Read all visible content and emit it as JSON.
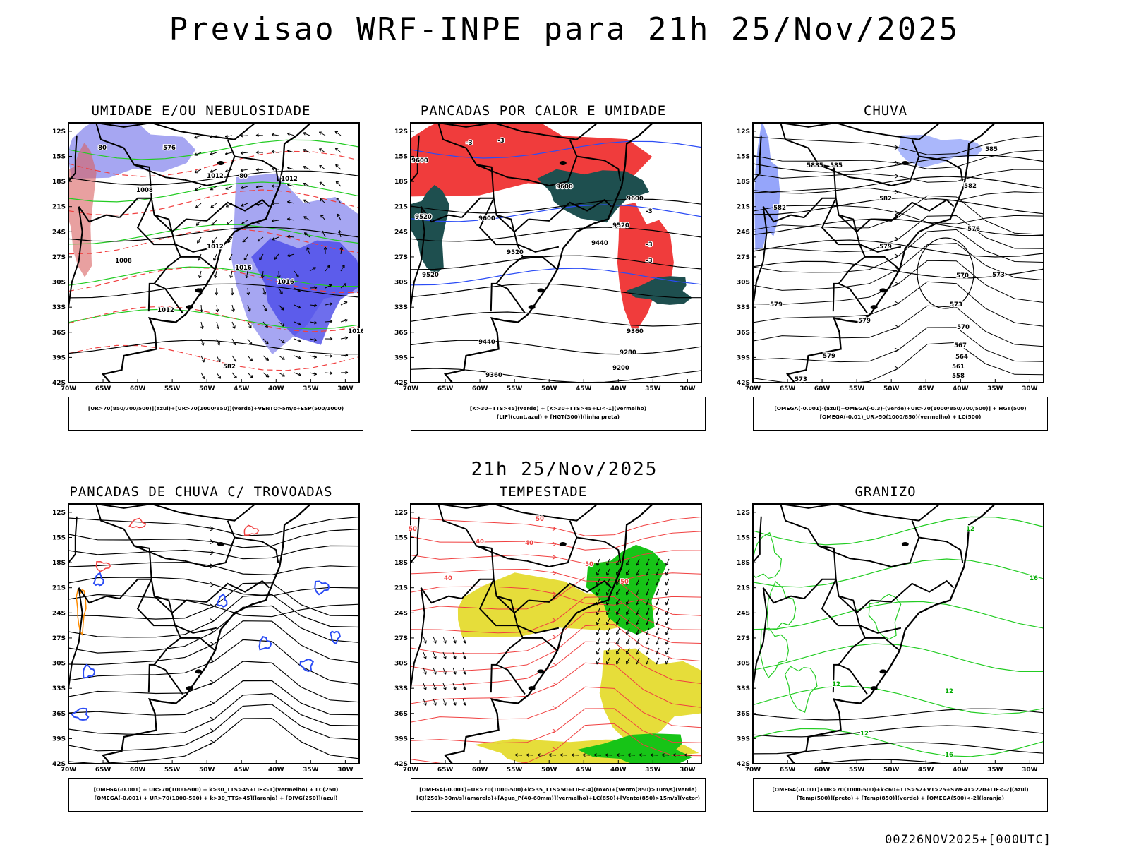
{
  "title": "Previsao WRF-INPE  para 21h 25/Nov/2025",
  "subtitle": "21h 25/Nov/2025",
  "footer": "00Z26NOV2025+[000UTC]",
  "axes": {
    "lat_labels": [
      "12S",
      "15S",
      "18S",
      "21S",
      "24S",
      "27S",
      "30S",
      "33S",
      "36S",
      "39S",
      "42S"
    ],
    "lon_labels": [
      "70W",
      "65W",
      "60W",
      "55W",
      "50W",
      "45W",
      "40W",
      "35W",
      "30W"
    ]
  },
  "colors": {
    "blue_shade": "#a6a6f2",
    "blue_strong": "#4a4ae8",
    "red_shade": "#f03c3c",
    "teal_shade": "#1e4f4f",
    "yellow_shade": "#e6dd3a",
    "green_shade": "#17c417",
    "green_line": "#22cc22",
    "red_line": "#f04040",
    "orange": "#ff8c00",
    "blue_line": "#2b4cf5"
  },
  "panels": [
    {
      "title": "UMIDADE E/OU NEBULOSIDADE",
      "legend": [
        "[UR>70(850/700/500)](azul)+[UR>70(1000/850)](verde)+VENTO>5m/s+ESP(500/1000)"
      ],
      "labels": [
        "1008",
        "1012",
        "1012",
        "1012",
        "1016",
        "1008",
        "1012",
        "1016",
        "1016",
        "80",
        "80",
        "576",
        "582"
      ]
    },
    {
      "title": "PANCADAS POR CALOR E UMIDADE",
      "legend": [
        "[K>30+TTS>45](verde) + [K>30+TTS>45+LI<-1](vermelho)",
        "[LIF](cont.azul) + [HGT(300)](linha preta)"
      ],
      "labels": [
        "9600",
        "9600",
        "9600",
        "9520",
        "9600",
        "9520",
        "9520",
        "9440",
        "9520",
        "9440",
        "9360",
        "9280",
        "9200",
        "9360",
        "-3",
        "-3",
        "-3",
        "-3",
        "-3"
      ]
    },
    {
      "title": "CHUVA",
      "legend": [
        "[OMEGA(-0.001)-(azul)+OMEGA(-0.3)-(verde)+UR>70(1000/850/700/500)] + HGT(500)",
        "[OMEGA(-0.01)_UR>50(1000/850)(vermelho) + LC(500)"
      ],
      "labels": [
        "585",
        "5885",
        "585",
        "582",
        "582",
        "579",
        "579",
        "579",
        "576",
        "573",
        "570",
        "573",
        "570",
        "567",
        "564",
        "561",
        "558",
        "573",
        "579",
        "582"
      ]
    },
    {
      "title": "PANCADAS DE CHUVA C/ TROVOADAS",
      "legend": [
        "[OMEGA(-0.001) + UR>70(1000-500) + k>30_TTS>45+LIF<-1](vermelho) + LC(250)",
        "[OMEGA(-0.001) + UR>70(1000-500) + k>30_TTS>45](laranja) + [DIVG(250)](azul)"
      ],
      "labels": []
    },
    {
      "title": "TEMPESTADE",
      "legend": [
        "[OMEGA(-0.001)+UR>70(1000-500)+k>35_TTS>50+LIF<-4](roxo)+[Vento(850)>10m/s](verde)",
        "[CJ(250)>30m/s](amarelo)+[Agua_P(40-60mm)](vermelho)+LC(850)+[Vento(850)>15m/s](vetor)"
      ],
      "labels": [
        "50",
        "50",
        "40",
        "40",
        "50",
        "40",
        "50"
      ]
    },
    {
      "title": "GRANIZO",
      "legend": [
        "[OMEGA(-0.001)+UR>70(1000-500)+k<60+TTS>52+VT>25+SWEAT>220+LIF<-2](azul)",
        "[Temp(500)](preto) + [Temp(850)](verde) + [OMEGA(500)<-2](laranja)"
      ],
      "labels": [
        "12",
        "12",
        "12",
        "16",
        "16",
        "12"
      ]
    }
  ]
}
